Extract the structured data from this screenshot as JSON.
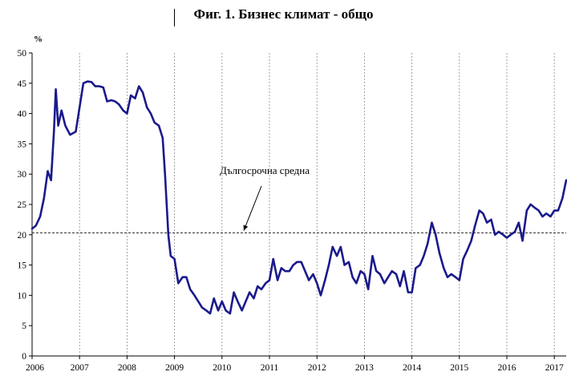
{
  "chart_data": {
    "type": "line",
    "title": "Фиг. 1. Бизнес климат - общо",
    "ylabel": "%",
    "ylim": [
      0,
      50
    ],
    "yticks": [
      "0",
      "5",
      "10",
      "15",
      "20",
      "25",
      "30",
      "35",
      "40",
      "45",
      "50"
    ],
    "xlim": [
      2006.0,
      2017.25
    ],
    "xticks": [
      "2006",
      "2007",
      "2008",
      "2009",
      "2010",
      "2011",
      "2012",
      "2013",
      "2014",
      "2015",
      "2016",
      "2017"
    ],
    "grid": "vertical dashed at years",
    "reference_line": {
      "label": "Дългосрочна средна",
      "value": 20.3
    },
    "series": [
      {
        "color": "#1a1a8c",
        "points": [
          [
            2006.0,
            21.0
          ],
          [
            2006.08,
            21.5
          ],
          [
            2006.17,
            23.0
          ],
          [
            2006.25,
            26.0
          ],
          [
            2006.33,
            30.5
          ],
          [
            2006.4,
            29.0
          ],
          [
            2006.46,
            37.0
          ],
          [
            2006.5,
            44.0
          ],
          [
            2006.55,
            38.0
          ],
          [
            2006.62,
            40.5
          ],
          [
            2006.7,
            38.0
          ],
          [
            2006.8,
            36.5
          ],
          [
            2006.92,
            37.0
          ],
          [
            2007.0,
            41.0
          ],
          [
            2007.08,
            45.0
          ],
          [
            2007.17,
            45.3
          ],
          [
            2007.25,
            45.2
          ],
          [
            2007.33,
            44.5
          ],
          [
            2007.42,
            44.5
          ],
          [
            2007.5,
            44.3
          ],
          [
            2007.58,
            42.0
          ],
          [
            2007.67,
            42.2
          ],
          [
            2007.75,
            42.0
          ],
          [
            2007.83,
            41.5
          ],
          [
            2007.92,
            40.5
          ],
          [
            2008.0,
            40.0
          ],
          [
            2008.08,
            43.0
          ],
          [
            2008.17,
            42.5
          ],
          [
            2008.25,
            44.5
          ],
          [
            2008.33,
            43.5
          ],
          [
            2008.42,
            41.0
          ],
          [
            2008.5,
            40.0
          ],
          [
            2008.58,
            38.5
          ],
          [
            2008.67,
            38.0
          ],
          [
            2008.75,
            36.0
          ],
          [
            2008.8,
            30.0
          ],
          [
            2008.87,
            20.0
          ],
          [
            2008.92,
            16.5
          ],
          [
            2009.0,
            16.0
          ],
          [
            2009.08,
            12.0
          ],
          [
            2009.17,
            13.0
          ],
          [
            2009.25,
            13.0
          ],
          [
            2009.33,
            11.0
          ],
          [
            2009.42,
            10.0
          ],
          [
            2009.5,
            9.0
          ],
          [
            2009.58,
            8.0
          ],
          [
            2009.67,
            7.5
          ],
          [
            2009.75,
            7.0
          ],
          [
            2009.83,
            9.5
          ],
          [
            2009.92,
            7.5
          ],
          [
            2010.0,
            9.0
          ],
          [
            2010.08,
            7.5
          ],
          [
            2010.17,
            7.0
          ],
          [
            2010.25,
            10.5
          ],
          [
            2010.33,
            9.0
          ],
          [
            2010.42,
            7.5
          ],
          [
            2010.5,
            9.0
          ],
          [
            2010.58,
            10.5
          ],
          [
            2010.67,
            9.5
          ],
          [
            2010.75,
            11.5
          ],
          [
            2010.83,
            11.0
          ],
          [
            2010.92,
            12.0
          ],
          [
            2011.0,
            12.5
          ],
          [
            2011.08,
            16.0
          ],
          [
            2011.17,
            12.5
          ],
          [
            2011.25,
            14.5
          ],
          [
            2011.33,
            14.0
          ],
          [
            2011.42,
            14.0
          ],
          [
            2011.5,
            15.0
          ],
          [
            2011.58,
            15.5
          ],
          [
            2011.67,
            15.5
          ],
          [
            2011.75,
            14.0
          ],
          [
            2011.83,
            12.5
          ],
          [
            2011.92,
            13.5
          ],
          [
            2012.0,
            12.0
          ],
          [
            2012.08,
            10.0
          ],
          [
            2012.17,
            12.5
          ],
          [
            2012.25,
            15.0
          ],
          [
            2012.33,
            18.0
          ],
          [
            2012.42,
            16.5
          ],
          [
            2012.5,
            18.0
          ],
          [
            2012.58,
            15.0
          ],
          [
            2012.67,
            15.5
          ],
          [
            2012.75,
            13.0
          ],
          [
            2012.83,
            12.0
          ],
          [
            2012.92,
            14.0
          ],
          [
            2013.0,
            13.5
          ],
          [
            2013.08,
            11.0
          ],
          [
            2013.17,
            16.5
          ],
          [
            2013.25,
            14.0
          ],
          [
            2013.33,
            13.5
          ],
          [
            2013.42,
            12.0
          ],
          [
            2013.5,
            13.0
          ],
          [
            2013.58,
            14.0
          ],
          [
            2013.67,
            13.5
          ],
          [
            2013.75,
            11.5
          ],
          [
            2013.83,
            14.0
          ],
          [
            2013.92,
            10.5
          ],
          [
            2014.0,
            10.5
          ],
          [
            2014.08,
            14.5
          ],
          [
            2014.17,
            15.0
          ],
          [
            2014.25,
            16.5
          ],
          [
            2014.33,
            18.5
          ],
          [
            2014.42,
            22.0
          ],
          [
            2014.5,
            20.0
          ],
          [
            2014.58,
            17.0
          ],
          [
            2014.67,
            14.5
          ],
          [
            2014.75,
            13.0
          ],
          [
            2014.83,
            13.5
          ],
          [
            2014.92,
            13.0
          ],
          [
            2015.0,
            12.5
          ],
          [
            2015.08,
            16.0
          ],
          [
            2015.17,
            17.5
          ],
          [
            2015.25,
            19.0
          ],
          [
            2015.33,
            21.5
          ],
          [
            2015.42,
            24.0
          ],
          [
            2015.5,
            23.5
          ],
          [
            2015.58,
            22.0
          ],
          [
            2015.67,
            22.5
          ],
          [
            2015.75,
            20.0
          ],
          [
            2015.83,
            20.5
          ],
          [
            2015.92,
            20.0
          ],
          [
            2016.0,
            19.5
          ],
          [
            2016.08,
            20.0
          ],
          [
            2016.17,
            20.5
          ],
          [
            2016.25,
            22.0
          ],
          [
            2016.33,
            19.0
          ],
          [
            2016.42,
            24.0
          ],
          [
            2016.5,
            25.0
          ],
          [
            2016.58,
            24.5
          ],
          [
            2016.67,
            24.0
          ],
          [
            2016.75,
            23.0
          ],
          [
            2016.83,
            23.5
          ],
          [
            2016.92,
            23.0
          ],
          [
            2017.0,
            24.0
          ],
          [
            2017.08,
            24.0
          ],
          [
            2017.17,
            26.0
          ],
          [
            2017.25,
            29.0
          ]
        ]
      }
    ]
  }
}
